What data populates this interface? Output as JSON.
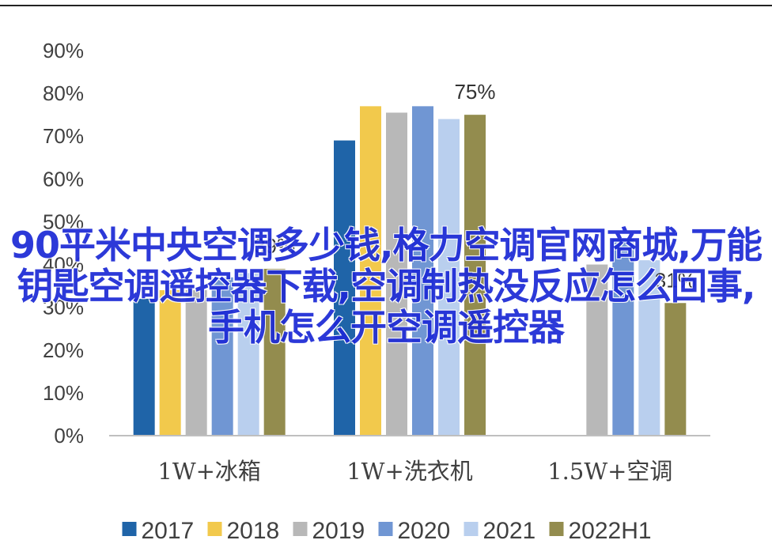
{
  "colors": {
    "2017": "#1f64a8",
    "2018": "#f2c94c",
    "2019": "#b8b8b8",
    "2020": "#7096d3",
    "2021": "#b9cfee",
    "2022H1": "#938c4e"
  },
  "chart_data": {
    "type": "bar",
    "categories": [
      "1W+冰箱",
      "1W+洗衣机",
      "1.5W+空调"
    ],
    "series": [
      {
        "name": "2017",
        "values": [
          0.32,
          0.69,
          null
        ]
      },
      {
        "name": "2018",
        "values": [
          0.34,
          0.77,
          null
        ]
      },
      {
        "name": "2019",
        "values": [
          0.34,
          0.755,
          0.4
        ]
      },
      {
        "name": "2020",
        "values": [
          0.37,
          0.77,
          0.46
        ]
      },
      {
        "name": "2021",
        "values": [
          0.38,
          0.74,
          0.41
        ]
      },
      {
        "name": "2022H1",
        "values": [
          0.39,
          0.75,
          0.31
        ]
      }
    ],
    "ylim": [
      0,
      0.9
    ],
    "yticks": [
      "0%",
      "10%",
      "20%",
      "30%",
      "40%",
      "50%",
      "60%",
      "70%",
      "80%",
      "90%"
    ],
    "data_labels": [
      {
        "category": 0,
        "series": 5,
        "text": "39%"
      },
      {
        "category": 1,
        "series": 5,
        "text": "75%"
      },
      {
        "category": 2,
        "series": 5,
        "text": "31%"
      }
    ],
    "legend_position": "bottom",
    "grid": false
  },
  "overlay_text": "90平米中央空调多少钱,格力空调官网商城,万能钥匙空调遥控器下载,空调制热没反应怎么回事,手机怎么开空调遥控器"
}
